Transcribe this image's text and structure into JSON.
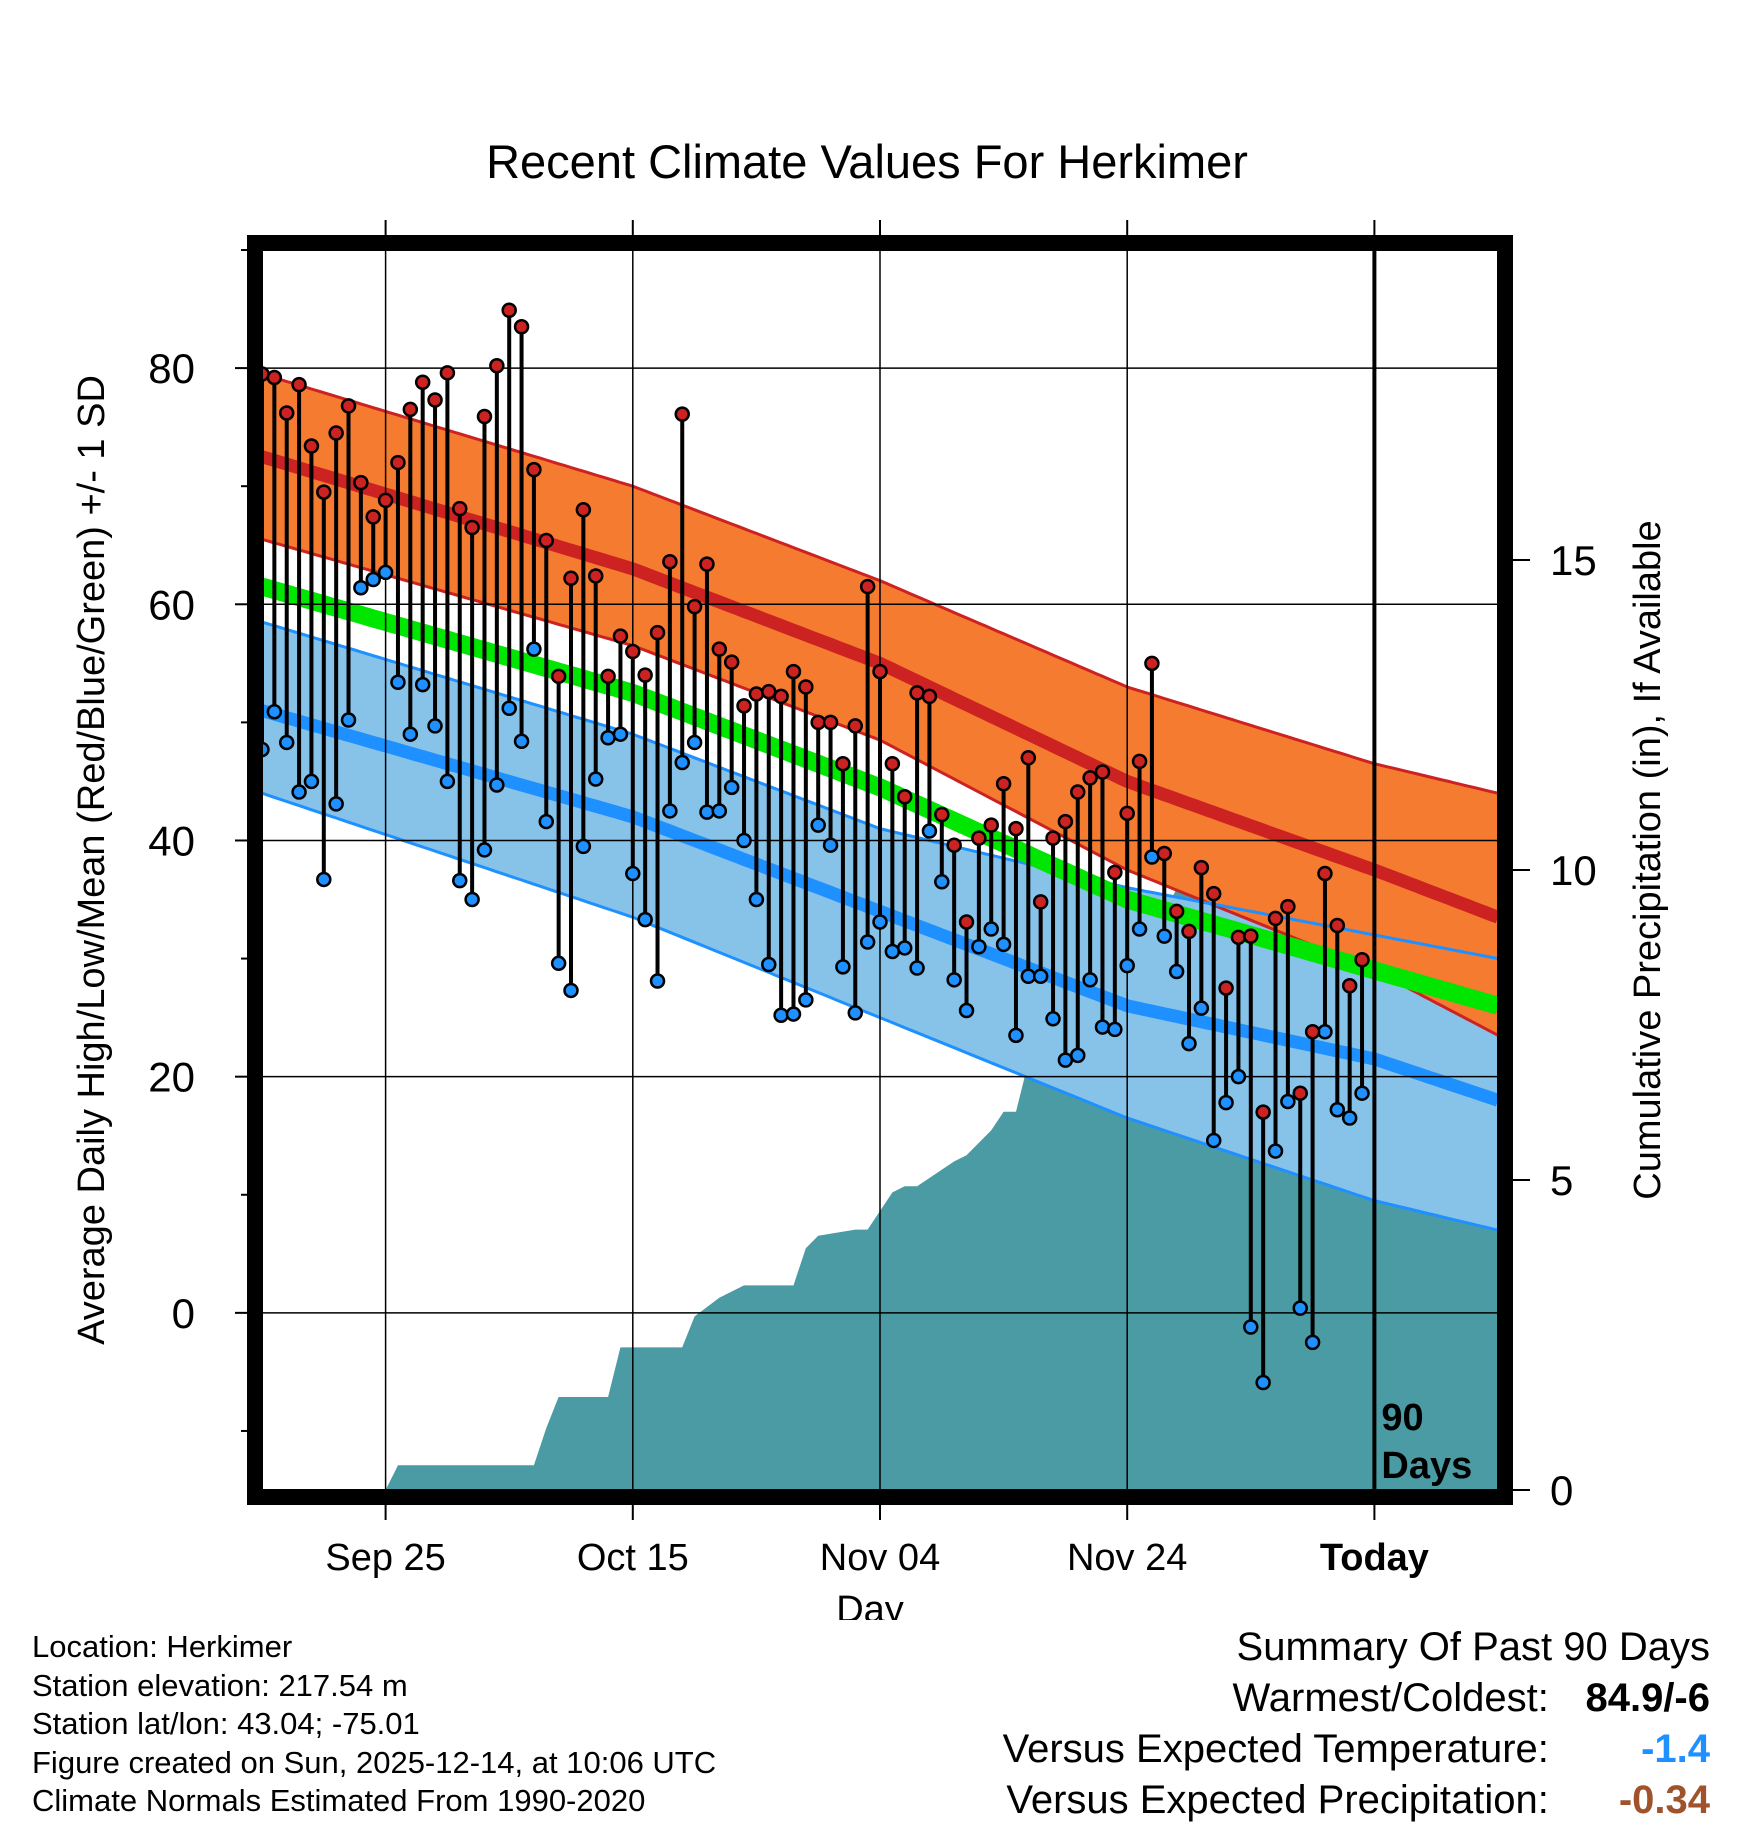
{
  "chart_data": {
    "type": "line",
    "title": "Recent Climate Values For Herkimer",
    "xlabel": "Day",
    "ylabel": "Average Daily High/Low/Mean (Red/Blue/Green) +/- 1 SD",
    "y2label": "Cumulative Precipitation (in), If Available",
    "xlim": [
      1,
      101
    ],
    "ylim": [
      -15,
      90
    ],
    "y2lim": [
      0,
      20
    ],
    "x_ticks": [
      {
        "x": 11,
        "label": "Sep 25"
      },
      {
        "x": 31,
        "label": "Oct 15"
      },
      {
        "x": 51,
        "label": "Nov 04"
      },
      {
        "x": 71,
        "label": "Nov 24"
      },
      {
        "x": 91,
        "label": "Today"
      }
    ],
    "y_ticks": [
      0,
      20,
      40,
      60,
      80
    ],
    "y2_ticks": [
      0,
      5,
      10,
      15
    ],
    "today_label": [
      "90",
      "Days"
    ],
    "normals": {
      "high_mean": [
        [
          1,
          72.5
        ],
        [
          31,
          63.0
        ],
        [
          51,
          55.0
        ],
        [
          71,
          45.0
        ],
        [
          91,
          37.5
        ],
        [
          101,
          33.5
        ]
      ],
      "high_upper": [
        [
          1,
          79.5
        ],
        [
          31,
          70.0
        ],
        [
          51,
          62.0
        ],
        [
          71,
          53.0
        ],
        [
          91,
          46.5
        ],
        [
          101,
          44.0
        ]
      ],
      "high_lower": [
        [
          1,
          65.5
        ],
        [
          31,
          56.5
        ],
        [
          51,
          48.5
        ],
        [
          71,
          37.5
        ],
        [
          91,
          29.0
        ],
        [
          101,
          23.5
        ]
      ],
      "low_mean": [
        [
          1,
          51.0
        ],
        [
          31,
          42.0
        ],
        [
          51,
          34.0
        ],
        [
          71,
          26.0
        ],
        [
          91,
          21.5
        ],
        [
          101,
          18.0
        ]
      ],
      "low_upper": [
        [
          1,
          58.5
        ],
        [
          31,
          49.0
        ],
        [
          51,
          41.0
        ],
        [
          71,
          36.0
        ],
        [
          91,
          32.0
        ],
        [
          101,
          30.0
        ]
      ],
      "low_lower": [
        [
          1,
          44.0
        ],
        [
          31,
          33.5
        ],
        [
          51,
          25.0
        ],
        [
          71,
          16.5
        ],
        [
          91,
          9.5
        ],
        [
          101,
          7.0
        ]
      ],
      "mean": [
        [
          1,
          61.5
        ],
        [
          31,
          52.5
        ],
        [
          51,
          44.5
        ],
        [
          71,
          35.0
        ],
        [
          91,
          29.0
        ],
        [
          101,
          26.0
        ]
      ]
    },
    "series": [
      {
        "name": "High",
        "color": "#cc2222",
        "values": [
          79.5,
          79.2,
          76.2,
          78.6,
          73.4,
          69.5,
          74.5,
          76.8,
          70.3,
          67.4,
          68.8,
          72.0,
          76.5,
          78.8,
          77.3,
          79.6,
          68.1,
          66.5,
          75.9,
          80.2,
          84.9,
          83.5,
          71.4,
          65.4,
          53.9,
          62.2,
          68.0,
          62.4,
          53.9,
          57.3,
          56.0,
          54.0,
          57.6,
          63.6,
          76.1,
          59.8,
          63.4,
          56.2,
          55.1,
          51.4,
          52.4,
          52.6,
          52.2,
          54.3,
          53.0,
          50.0,
          50.0,
          46.5,
          49.7,
          61.5,
          54.3,
          46.5,
          43.7,
          52.5,
          52.2,
          42.2,
          39.6,
          33.1,
          40.2,
          41.3,
          44.8,
          41.0,
          47.0,
          34.8,
          40.2,
          41.6,
          44.1,
          45.3,
          45.8,
          37.3,
          42.3,
          46.7,
          55.0,
          38.9,
          34.0,
          32.3,
          37.7,
          35.5,
          27.5,
          31.8,
          31.9,
          17.0,
          33.4,
          34.4,
          18.6,
          23.8,
          37.2,
          32.8,
          27.7,
          29.9
        ]
      },
      {
        "name": "Low",
        "color": "#1e90ff",
        "values": [
          47.7,
          50.9,
          48.3,
          44.1,
          45.0,
          36.7,
          43.1,
          50.2,
          61.4,
          62.1,
          62.7,
          53.4,
          49.0,
          53.2,
          49.7,
          45.0,
          36.6,
          35.0,
          39.2,
          44.7,
          51.2,
          48.4,
          56.2,
          41.6,
          29.6,
          27.3,
          39.5,
          45.2,
          48.7,
          49.0,
          37.2,
          33.3,
          28.1,
          42.5,
          46.6,
          48.3,
          42.4,
          42.5,
          44.5,
          40.0,
          35.0,
          29.5,
          25.2,
          25.3,
          26.5,
          41.3,
          39.6,
          29.3,
          25.4,
          31.4,
          33.1,
          30.6,
          30.9,
          29.2,
          40.8,
          36.5,
          28.2,
          25.6,
          31.0,
          32.5,
          31.2,
          23.5,
          28.5,
          28.5,
          24.9,
          21.4,
          21.8,
          28.2,
          24.2,
          24.0,
          29.4,
          32.5,
          38.6,
          31.9,
          28.9,
          22.8,
          25.8,
          14.6,
          17.8,
          20.0,
          -1.2,
          -5.9,
          13.7,
          17.9,
          0.4,
          -2.5,
          23.8,
          17.2,
          16.5,
          18.6
        ]
      }
    ],
    "precip_cumulative": {
      "x": [
        1,
        11,
        12,
        23,
        24,
        25,
        29,
        30,
        35,
        36,
        38,
        40,
        44,
        45,
        46,
        49,
        50,
        51,
        52,
        53,
        54,
        57,
        58,
        60,
        61,
        62,
        63,
        64,
        67,
        69,
        70,
        71,
        72,
        73,
        74,
        75,
        76,
        79,
        80,
        82,
        84,
        86,
        87,
        88,
        89,
        91,
        101
      ],
      "y": [
        0,
        0,
        0.4,
        0.4,
        1.0,
        1.5,
        1.5,
        2.3,
        2.3,
        2.8,
        3.1,
        3.3,
        3.3,
        3.9,
        4.1,
        4.2,
        4.2,
        4.5,
        4.8,
        4.9,
        4.9,
        5.3,
        5.4,
        5.8,
        6.1,
        6.1,
        6.9,
        7.9,
        7.9,
        7.9,
        8.2,
        8.3,
        8.7,
        9.2,
        9.3,
        9.7,
        9.8,
        9.8,
        10.3,
        10.3,
        10.4,
        10.5,
        10.9,
        11.1,
        11.2,
        11.2,
        11.2
      ]
    }
  },
  "footer": {
    "location": "Location: Herkimer",
    "elevation": "Station elevation: 217.54 m",
    "latlon": "Station lat/lon: 43.04; -75.01",
    "created": "Figure created on Sun, 2025-12-14, at 10:06 UTC",
    "normals": "Climate Normals Estimated From 1990-2020"
  },
  "summary": {
    "heading": "Summary Of Past 90 Days",
    "warmest_label": "Warmest/Coldest:",
    "warmest_value": "84.9/-6",
    "temp_label": "Versus Expected Temperature:",
    "temp_value": "-1.4",
    "precip_label": "Versus Expected Precipitation:",
    "precip_value": "-0.34"
  },
  "colors": {
    "high_band": "#f47b30",
    "high_line": "#cc2222",
    "low_band": "#87c3e9",
    "low_line": "#1e90ff",
    "mean_line": "#00e600",
    "precip": "#4a9ba4",
    "frame": "#000000"
  }
}
